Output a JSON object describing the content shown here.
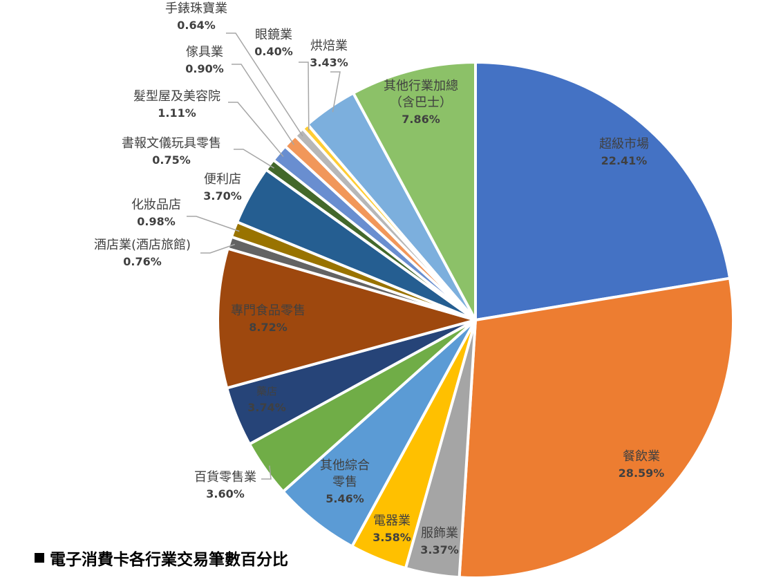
{
  "chart_data": {
    "type": "pie",
    "title": "電子消費卡各行業交易筆數百分比",
    "slices": [
      {
        "label": "超級市場",
        "value": 22.41,
        "value_label": "22.41%",
        "color": "#4472C4"
      },
      {
        "label": "餐飲業",
        "value": 28.59,
        "value_label": "28.59%",
        "color": "#ED7D31"
      },
      {
        "label": "服飾業",
        "value": 3.37,
        "value_label": "3.37%",
        "color": "#A5A5A5"
      },
      {
        "label": "電器業",
        "value": 3.58,
        "value_label": "3.58%",
        "color": "#FFC000"
      },
      {
        "label": [
          "其他綜合",
          "零售"
        ],
        "value": 5.46,
        "value_label": "5.46%",
        "color": "#5B9BD5"
      },
      {
        "label": "百貨零售業",
        "value": 3.6,
        "value_label": "3.60%",
        "color": "#70AD47"
      },
      {
        "label": "藥店",
        "value": 3.74,
        "value_label": "3.74%",
        "color": "#264478"
      },
      {
        "label": "專門食品零售",
        "value": 8.72,
        "value_label": "8.72%",
        "color": "#9E480E"
      },
      {
        "label": "酒店業(酒店旅館)",
        "value": 0.76,
        "value_label": "0.76%",
        "color": "#636363"
      },
      {
        "label": "化妝品店",
        "value": 0.98,
        "value_label": "0.98%",
        "color": "#997300"
      },
      {
        "label": "便利店",
        "value": 3.7,
        "value_label": "3.70%",
        "color": "#255E91"
      },
      {
        "label": "書報文儀玩具零售",
        "value": 0.75,
        "value_label": "0.75%",
        "color": "#43682B"
      },
      {
        "label": "髮型屋及美容院",
        "value": 1.11,
        "value_label": "1.11%",
        "color": "#698ED0"
      },
      {
        "label": "傢具業",
        "value": 0.9,
        "value_label": "0.90%",
        "color": "#F1975A"
      },
      {
        "label": "手錶珠寶業",
        "value": 0.64,
        "value_label": "0.64%",
        "color": "#B7B7B7"
      },
      {
        "label": "眼鏡業",
        "value": 0.4,
        "value_label": "0.40%",
        "color": "#FFCD33"
      },
      {
        "label": "烘焙業",
        "value": 3.43,
        "value_label": "3.43%",
        "color": "#7CAFDD"
      },
      {
        "label": [
          "其他行業加總",
          "（含巴士）"
        ],
        "value": 7.86,
        "value_label": "7.86%",
        "color": "#8CC168"
      }
    ]
  }
}
